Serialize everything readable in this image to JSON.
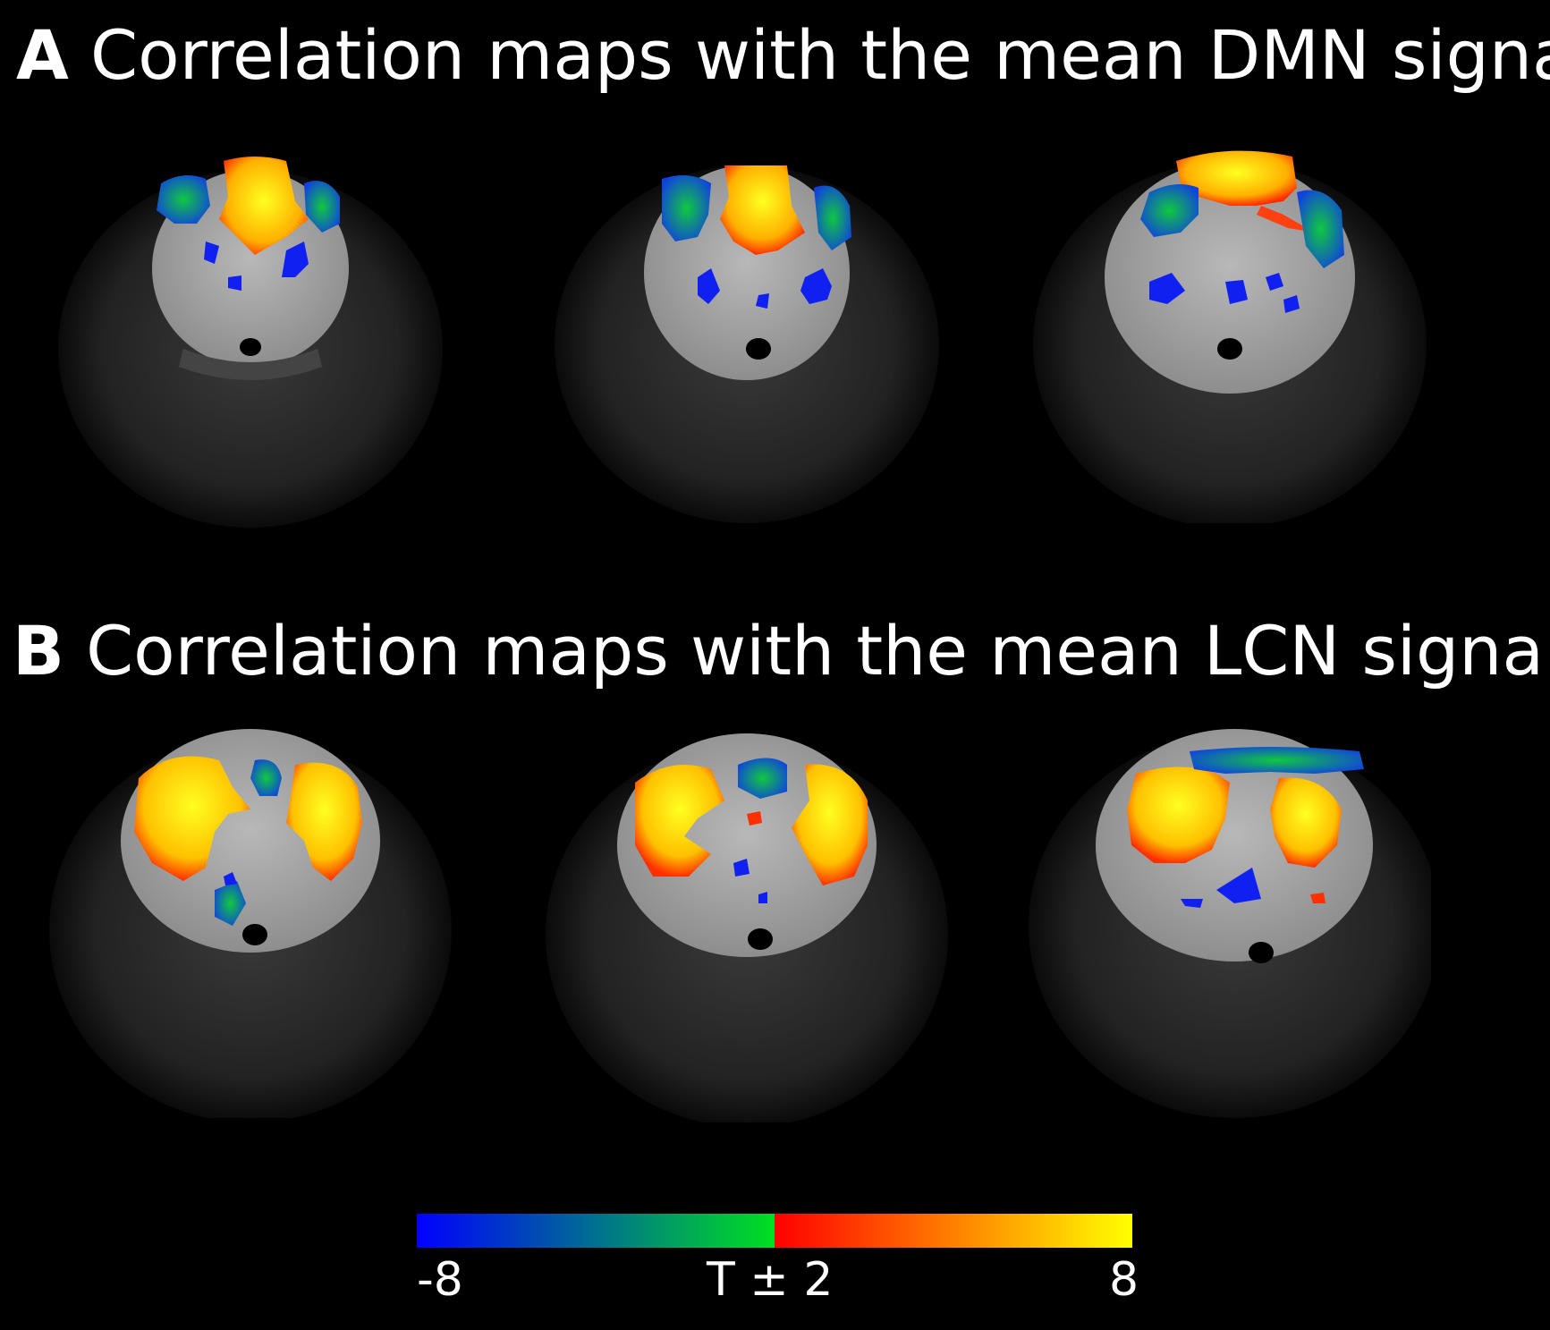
{
  "panel_a": {
    "letter": "A",
    "title": "Correlation maps with the mean DMN signal"
  },
  "panel_b": {
    "letter": "B",
    "title": "Correlation maps with the mean LCN signal"
  },
  "colorbar": {
    "min_label": "-8",
    "mid_label": "T ± 2",
    "max_label": "8",
    "negative_colors": [
      "#0000ff",
      "#00e020"
    ],
    "positive_colors": [
      "#ff0000",
      "#ffff00"
    ]
  }
}
